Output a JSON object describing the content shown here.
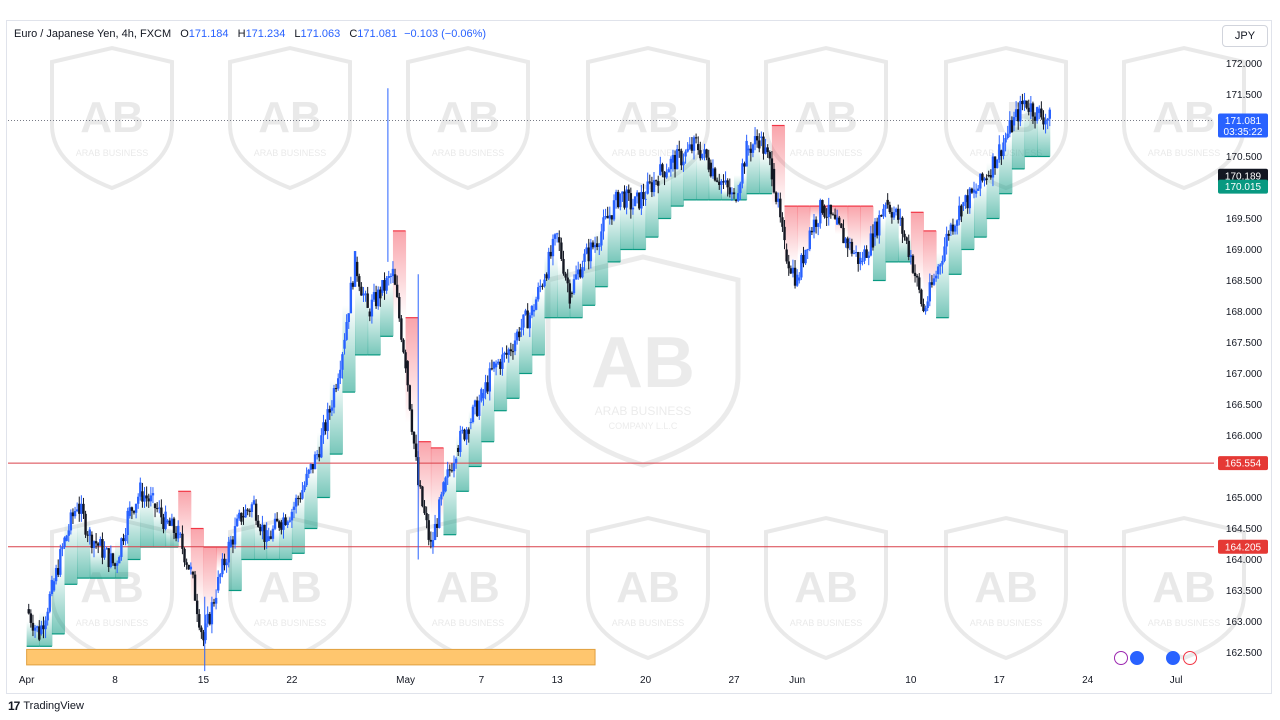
{
  "legend": {
    "symbol": "Euro / Japanese Yen, 4h, FXCM",
    "o_label": "O",
    "o_value": "171.184",
    "h_label": "H",
    "h_value": "171.234",
    "l_label": "L",
    "l_value": "171.063",
    "c_label": "C",
    "c_value": "171.081",
    "change": "−0.103 (−0.06%)"
  },
  "currency_button": "JPY",
  "footer": {
    "logo": "17",
    "brand": "TradingView"
  },
  "watermark": {
    "line1": "ARAB BUSINESS",
    "line2": "COMPANY L.L.C"
  },
  "price_badges": {
    "last": {
      "value": "171.081",
      "countdown": "03:35:22",
      "color": "#2962ff"
    },
    "dark": {
      "value": "170.189",
      "color": "#131722"
    },
    "green": {
      "value": "170.015",
      "color": "#089981"
    },
    "level_upper": {
      "value": "165.554",
      "color": "#e53935"
    },
    "level_lower": {
      "value": "164.205",
      "color": "#e53935"
    }
  },
  "colors": {
    "candle": "#2962ff",
    "candle_dark": "#131722",
    "supertrend_up": "#089981",
    "supertrend_down": "#f23645",
    "zone": "#ffc66e",
    "level_line": "#d9404a"
  },
  "chart_data": {
    "type": "line",
    "title": "Euro / Japanese Yen, 4h, FXCM",
    "ylim": [
      162.25,
      172.25
    ],
    "y_ticks": [
      "162.500",
      "163.000",
      "163.500",
      "164.000",
      "164.500",
      "165.000",
      "165.500",
      "166.000",
      "166.500",
      "167.000",
      "167.500",
      "168.000",
      "168.500",
      "169.000",
      "169.500",
      "170.000",
      "170.500",
      "171.000",
      "171.500",
      "172.000"
    ],
    "x_ticks": [
      {
        "label": "Apr",
        "day": 0
      },
      {
        "label": "8",
        "day": 7
      },
      {
        "label": "15",
        "day": 14
      },
      {
        "label": "22",
        "day": 21
      },
      {
        "label": "May",
        "day": 30
      },
      {
        "label": "7",
        "day": 36
      },
      {
        "label": "13",
        "day": 42
      },
      {
        "label": "20",
        "day": 49
      },
      {
        "label": "27",
        "day": 56
      },
      {
        "label": "Jun",
        "day": 61
      },
      {
        "label": "10",
        "day": 70
      },
      {
        "label": "17",
        "day": 77
      },
      {
        "label": "24",
        "day": 84
      },
      {
        "label": "Jul",
        "day": 91
      }
    ],
    "series": [
      {
        "values": [
          [
            0,
            163.2
          ],
          [
            1,
            162.8
          ],
          [
            2,
            163.5
          ],
          [
            3,
            164.3
          ],
          [
            4,
            164.9
          ],
          [
            5,
            164.4
          ],
          [
            7,
            163.9
          ],
          [
            8,
            164.7
          ],
          [
            9,
            165.1
          ],
          [
            10,
            164.9
          ],
          [
            11,
            164.6
          ],
          [
            12,
            164.4
          ],
          [
            13,
            163.8
          ],
          [
            14,
            162.7
          ],
          [
            15,
            163.5
          ],
          [
            16,
            164.2
          ],
          [
            17,
            164.7
          ],
          [
            18,
            164.9
          ],
          [
            19,
            164.3
          ],
          [
            20,
            164.6
          ],
          [
            21,
            164.8
          ],
          [
            22,
            165.2
          ],
          [
            23,
            165.7
          ],
          [
            24,
            166.4
          ],
          [
            25,
            167.4
          ],
          [
            26,
            168.8
          ],
          [
            27,
            168.0
          ],
          [
            28,
            168.3
          ],
          [
            29,
            168.6
          ],
          [
            30,
            167.2
          ],
          [
            31,
            165.2
          ],
          [
            32,
            164.2
          ],
          [
            33,
            165.1
          ],
          [
            34,
            165.8
          ],
          [
            35,
            166.2
          ],
          [
            36,
            166.6
          ],
          [
            37,
            167.1
          ],
          [
            38,
            167.3
          ],
          [
            39,
            167.7
          ],
          [
            40,
            168.0
          ],
          [
            41,
            168.6
          ],
          [
            42,
            169.2
          ],
          [
            43,
            168.3
          ],
          [
            44,
            168.8
          ],
          [
            45,
            169.1
          ],
          [
            46,
            169.5
          ],
          [
            47,
            169.9
          ],
          [
            48,
            169.7
          ],
          [
            49,
            169.9
          ],
          [
            50,
            170.2
          ],
          [
            51,
            170.4
          ],
          [
            52,
            170.5
          ],
          [
            53,
            170.7
          ],
          [
            54,
            170.4
          ],
          [
            55,
            170.1
          ],
          [
            56,
            169.8
          ],
          [
            57,
            170.6
          ],
          [
            58,
            170.8
          ],
          [
            59,
            170.3
          ],
          [
            60,
            169.0
          ],
          [
            61,
            168.5
          ],
          [
            62,
            169.3
          ],
          [
            63,
            169.7
          ],
          [
            64,
            169.4
          ],
          [
            65,
            169.1
          ],
          [
            66,
            168.8
          ],
          [
            67,
            169.2
          ],
          [
            68,
            169.8
          ],
          [
            69,
            169.5
          ],
          [
            70,
            168.9
          ],
          [
            71,
            168.0
          ],
          [
            72,
            168.6
          ],
          [
            73,
            169.3
          ],
          [
            74,
            169.7
          ],
          [
            75,
            169.9
          ],
          [
            76,
            170.2
          ],
          [
            77,
            170.6
          ],
          [
            78,
            171.0
          ],
          [
            79,
            171.4
          ],
          [
            80,
            171.2
          ],
          [
            81,
            171.1
          ]
        ]
      }
    ],
    "horizontal_levels": [
      165.554,
      164.205
    ],
    "current_price": 171.081,
    "zone": {
      "x_start_day": 0,
      "x_end_day": 45,
      "y_low": 162.3,
      "y_high": 162.55
    }
  }
}
